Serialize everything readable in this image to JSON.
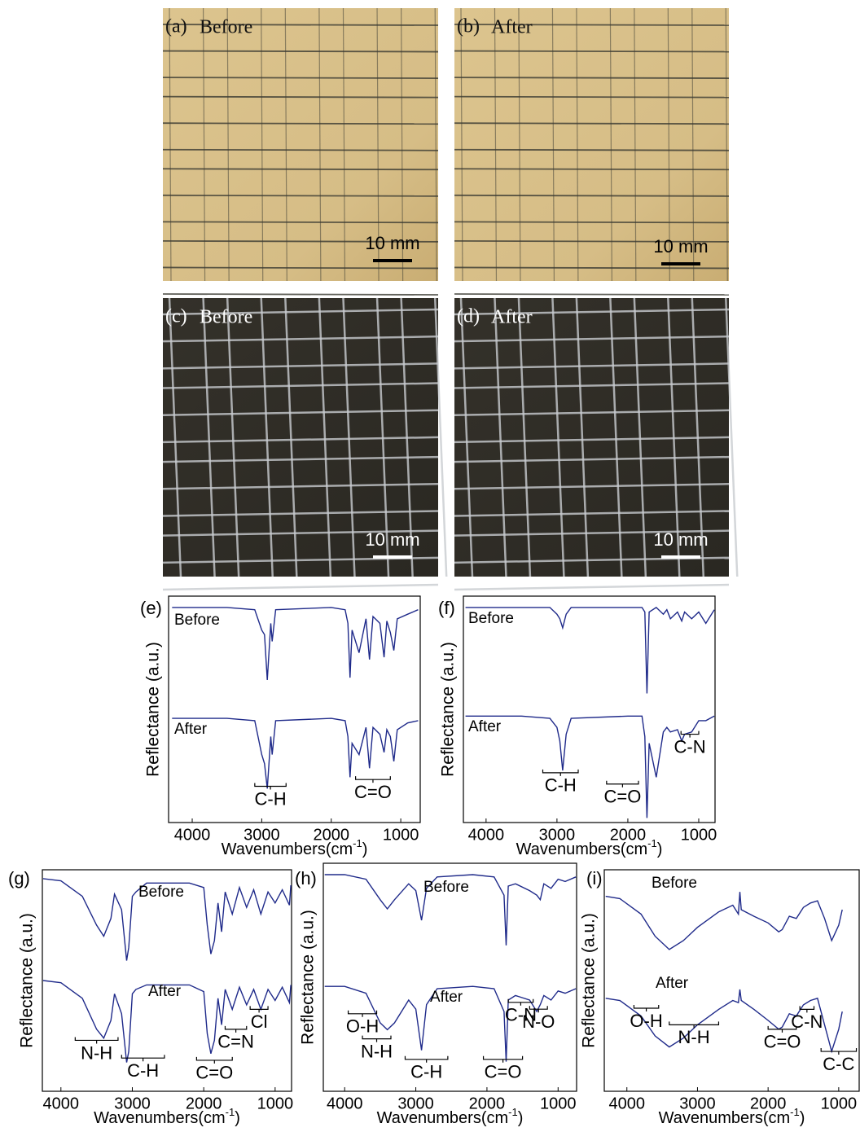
{
  "photos": [
    {
      "label": "(a)",
      "caption": "Before",
      "scale_bar": "10 mm"
    },
    {
      "label": "(b)",
      "caption": "After",
      "scale_bar": "10 mm"
    },
    {
      "label": "(c)",
      "caption": "Before",
      "scale_bar": "10 mm"
    },
    {
      "label": "(d)",
      "caption": "After",
      "scale_bar": "10 mm"
    }
  ],
  "chart_data": [
    {
      "type": "line",
      "label": "(e)",
      "ylabel": "Reflectance (a.u.)",
      "xlabel": "Wavenumbers(cm",
      "xlabel_sup": "-1",
      "xlabel_end": ")",
      "xlim": [
        4340,
        720
      ],
      "xticks": [
        4000,
        3000,
        2000,
        1000
      ],
      "ylim": [
        0,
        10
      ],
      "x": [
        4290,
        3500,
        3100,
        3000,
        2960,
        2920,
        2870,
        2850,
        2800,
        2000,
        1800,
        1760,
        1730,
        1700,
        1600,
        1500,
        1450,
        1400,
        1300,
        1240,
        1200,
        1150,
        1100,
        1050,
        900,
        750
      ],
      "series": [
        {
          "name": "Before",
          "color": "#1f2a8a",
          "values": [
            9.5,
            9.5,
            9.4,
            8.5,
            8.3,
            6.3,
            8.8,
            8.0,
            9.4,
            9.5,
            9.4,
            8.8,
            6.4,
            8.5,
            7.5,
            9.0,
            7.2,
            9.1,
            8.8,
            7.3,
            8.9,
            8.4,
            7.6,
            9.0,
            9.2,
            9.4
          ]
        },
        {
          "name": "After",
          "color": "#1f2a8a",
          "values": [
            4.6,
            4.6,
            4.5,
            3.0,
            2.6,
            1.5,
            3.8,
            3.0,
            4.5,
            4.6,
            4.5,
            3.8,
            2.0,
            3.5,
            3.0,
            4.2,
            2.4,
            4.2,
            3.9,
            3.1,
            4.1,
            3.8,
            2.7,
            4.1,
            4.4,
            4.5
          ]
        }
      ],
      "annotations": [
        {
          "text": "C-H",
          "range": [
            3100,
            2650
          ],
          "y": 1.6
        },
        {
          "text": "C=O",
          "range": [
            1650,
            1150
          ],
          "y": 1.9
        }
      ]
    },
    {
      "type": "line",
      "label": "(f)",
      "ylabel": "Reflectance (a.u.)",
      "xlabel": "Wavenumbers(cm",
      "xlabel_sup": "-1",
      "xlabel_end": ")",
      "xlim": [
        4320,
        770
      ],
      "xticks": [
        4000,
        3000,
        2000,
        1000
      ],
      "ylim": [
        0,
        10
      ],
      "x": [
        4290,
        3500,
        3100,
        3000,
        2960,
        2920,
        2870,
        2800,
        2000,
        1800,
        1760,
        1730,
        1700,
        1600,
        1500,
        1450,
        1400,
        1300,
        1240,
        1200,
        1100,
        1000,
        900,
        780
      ],
      "series": [
        {
          "name": "Before",
          "color": "#1f2a8a",
          "values": [
            9.5,
            9.5,
            9.5,
            9.2,
            9.0,
            8.6,
            9.2,
            9.5,
            9.5,
            9.5,
            9.3,
            5.7,
            9.3,
            9.5,
            9.2,
            9.4,
            9.0,
            9.3,
            8.9,
            9.3,
            9.0,
            9.3,
            8.8,
            9.4
          ]
        },
        {
          "name": "After",
          "color": "#1f2a8a",
          "values": [
            4.7,
            4.7,
            4.6,
            4.2,
            3.6,
            2.3,
            3.9,
            4.6,
            4.7,
            4.7,
            3.8,
            0.2,
            3.5,
            2.0,
            4.0,
            4.2,
            4.0,
            4.1,
            3.6,
            3.9,
            4.0,
            4.5,
            4.5,
            4.7
          ]
        }
      ],
      "annotations": [
        {
          "text": "C-H",
          "range": [
            3200,
            2700
          ],
          "y": 2.2
        },
        {
          "text": "C=O",
          "range": [
            2300,
            1850
          ],
          "y": 1.7
        },
        {
          "text": "C-N",
          "range": [
            1250,
            1000
          ],
          "y": 3.9
        }
      ]
    },
    {
      "type": "line",
      "label": "(g)",
      "ylabel": "Reflectance (a.u.)",
      "xlabel": "Wavenumbers(cm",
      "xlabel_sup": "-1",
      "xlabel_end": ")",
      "xlim": [
        4260,
        770
      ],
      "xticks": [
        4000,
        3000,
        2000,
        1000
      ],
      "ylim": [
        0,
        10
      ],
      "x": [
        4250,
        4000,
        3700,
        3500,
        3400,
        3300,
        3250,
        3150,
        3080,
        3050,
        3000,
        2950,
        2800,
        2200,
        2000,
        1950,
        1900,
        1850,
        1800,
        1750,
        1700,
        1600,
        1500,
        1400,
        1300,
        1200,
        1100,
        1000,
        900,
        800,
        780
      ],
      "series": [
        {
          "name": "Before",
          "color": "#1f2a8a",
          "values": [
            9.6,
            9.5,
            8.8,
            7.5,
            7.0,
            7.8,
            8.9,
            8.2,
            5.9,
            6.5,
            8.8,
            9.0,
            9.4,
            9.4,
            9.2,
            7.5,
            6.2,
            6.8,
            8.5,
            7.2,
            9.0,
            8.0,
            9.2,
            8.3,
            9.1,
            8.0,
            9.0,
            8.5,
            9.1,
            8.4,
            9.3
          ]
        },
        {
          "name": "After",
          "color": "#1f2a8a",
          "values": [
            5.0,
            4.9,
            4.2,
            2.8,
            2.4,
            3.2,
            4.4,
            3.5,
            1.3,
            1.8,
            4.4,
            4.6,
            4.8,
            4.8,
            4.5,
            2.6,
            1.7,
            2.3,
            4.2,
            3.0,
            4.6,
            3.7,
            4.7,
            3.9,
            4.6,
            3.7,
            4.6,
            4.1,
            4.7,
            4.0,
            4.8
          ]
        }
      ],
      "annotations": [
        {
          "text": "N-H",
          "range": [
            3800,
            3200
          ],
          "y": 2.3
        },
        {
          "text": "C-H",
          "range": [
            3150,
            2550
          ],
          "y": 1.5
        },
        {
          "text": "C=O",
          "range": [
            2100,
            1600
          ],
          "y": 1.4
        },
        {
          "text": "C=N",
          "range": [
            1700,
            1400
          ],
          "y": 2.8
        },
        {
          "text": "Cl",
          "range": [
            1350,
            1100
          ],
          "y": 3.7
        }
      ]
    },
    {
      "type": "line",
      "label": "(h)",
      "ylabel": "Reflectance (a.u.)",
      "xlabel": "Wavenumbers(cm",
      "xlabel_sup": "-1",
      "xlabel_end": ")",
      "xlim": [
        4300,
        740
      ],
      "xticks": [
        4000,
        3000,
        2000,
        1000
      ],
      "ylim": [
        0,
        10
      ],
      "x": [
        4280,
        4000,
        3700,
        3500,
        3400,
        3300,
        3100,
        3000,
        2920,
        2850,
        2700,
        2200,
        1900,
        1760,
        1730,
        1700,
        1600,
        1400,
        1300,
        1250,
        1200,
        1100,
        1000,
        900,
        750
      ],
      "series": [
        {
          "name": "Before",
          "color": "#1f2a8a",
          "values": [
            9.5,
            9.5,
            9.3,
            8.4,
            8.0,
            8.4,
            9.1,
            8.8,
            7.5,
            8.9,
            9.4,
            9.5,
            9.4,
            8.6,
            6.4,
            9.0,
            9.1,
            8.8,
            8.6,
            8.4,
            9.1,
            8.9,
            9.3,
            9.2,
            9.4
          ]
        },
        {
          "name": "After",
          "color": "#1f2a8a",
          "values": [
            4.6,
            4.6,
            4.3,
            3.0,
            2.7,
            3.0,
            4.0,
            3.6,
            1.8,
            3.8,
            4.5,
            4.6,
            4.5,
            3.5,
            1.3,
            4.0,
            4.2,
            4.0,
            3.5,
            3.8,
            4.2,
            4.0,
            4.4,
            4.3,
            4.5
          ]
        }
      ],
      "annotations": [
        {
          "text": "O-H",
          "range": [
            3950,
            3550
          ],
          "y": 3.4
        },
        {
          "text": "N-H",
          "range": [
            3750,
            3350
          ],
          "y": 2.3
        },
        {
          "text": "C-H",
          "range": [
            3150,
            2550
          ],
          "y": 1.4
        },
        {
          "text": "C=O",
          "range": [
            2050,
            1500
          ],
          "y": 1.4
        },
        {
          "text": "C-N",
          "range": [
            1700,
            1350
          ],
          "y": 3.9
        },
        {
          "text": "N-O",
          "range": [
            1400,
            1150
          ],
          "y": 3.6
        }
      ]
    },
    {
      "type": "line",
      "label": "(i)",
      "ylabel": "Reflectance (a.u.)",
      "xlabel": "Wavenumbers(cm",
      "xlabel_sup": "-1",
      "xlabel_end": ")",
      "xlim": [
        4320,
        710
      ],
      "xticks": [
        4000,
        3000,
        2000,
        1000
      ],
      "ylim": [
        0,
        10
      ],
      "x": [
        4300,
        4100,
        3800,
        3600,
        3400,
        3200,
        3000,
        2700,
        2500,
        2420,
        2400,
        2380,
        2200,
        2000,
        1850,
        1800,
        1700,
        1600,
        1500,
        1400,
        1300,
        1200,
        1100,
        1000,
        950
      ],
      "series": [
        {
          "name": "Before",
          "color": "#1f2a8a",
          "values": [
            8.8,
            8.7,
            8.0,
            7.0,
            6.4,
            6.8,
            7.4,
            8.1,
            8.4,
            8.0,
            9.0,
            8.2,
            7.9,
            7.6,
            7.2,
            7.3,
            7.9,
            7.8,
            8.3,
            8.5,
            8.6,
            7.8,
            6.8,
            7.5,
            8.2
          ]
        },
        {
          "name": "After",
          "color": "#1f2a8a",
          "values": [
            4.2,
            4.1,
            3.4,
            2.5,
            2.0,
            2.4,
            3.0,
            3.7,
            4.1,
            4.0,
            4.6,
            4.1,
            3.7,
            3.2,
            2.8,
            2.9,
            3.5,
            3.4,
            3.9,
            4.1,
            4.2,
            3.0,
            1.8,
            2.8,
            3.6
          ]
        }
      ],
      "annotations": [
        {
          "text": "O-H",
          "range": [
            3900,
            3550
          ],
          "y": 3.75
        },
        {
          "text": "N-H",
          "range": [
            3400,
            2700
          ],
          "y": 3.0
        },
        {
          "text": "C=O",
          "range": [
            2000,
            1600
          ],
          "y": 2.8
        },
        {
          "text": "C-N",
          "range": [
            1550,
            1350
          ],
          "y": 3.7
        },
        {
          "text": "C-C",
          "range": [
            1250,
            750
          ],
          "y": 1.8
        }
      ]
    }
  ]
}
